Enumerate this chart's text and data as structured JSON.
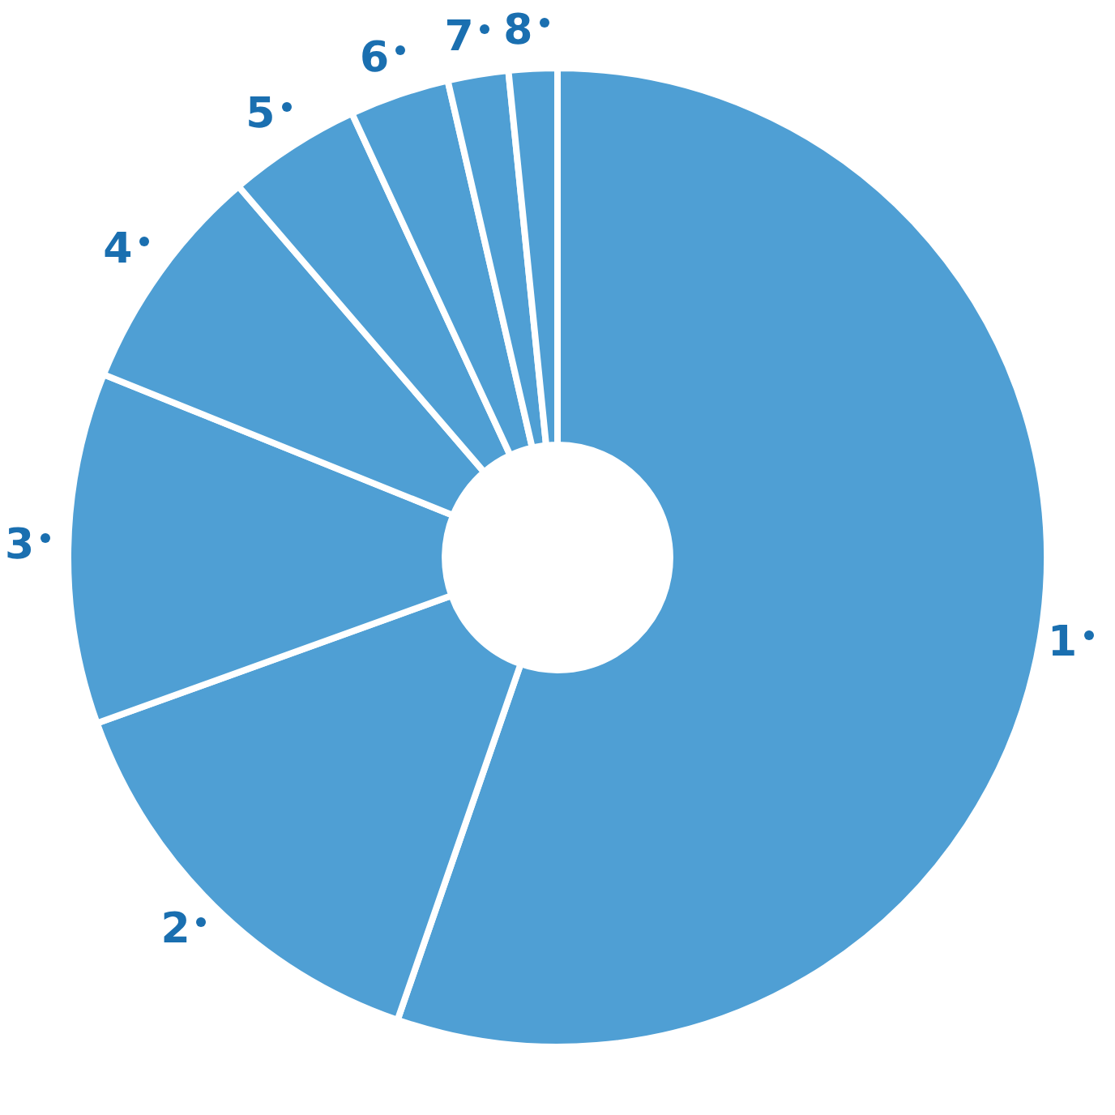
{
  "chart_data": {
    "type": "donut",
    "categories": [
      "1",
      "2",
      "3",
      "4",
      "5",
      "6",
      "7",
      "8"
    ],
    "values": [
      55.3,
      14.2,
      11.6,
      7.6,
      4.4,
      3.3,
      2.0,
      1.6
    ],
    "colors": [
      "#4f9fd4",
      "#4f9fd4",
      "#4f9fd4",
      "#4f9fd4",
      "#4f9fd4",
      "#4f9fd4",
      "#4f9fd4",
      "#4f9fd4"
    ],
    "legend": false
  }
}
